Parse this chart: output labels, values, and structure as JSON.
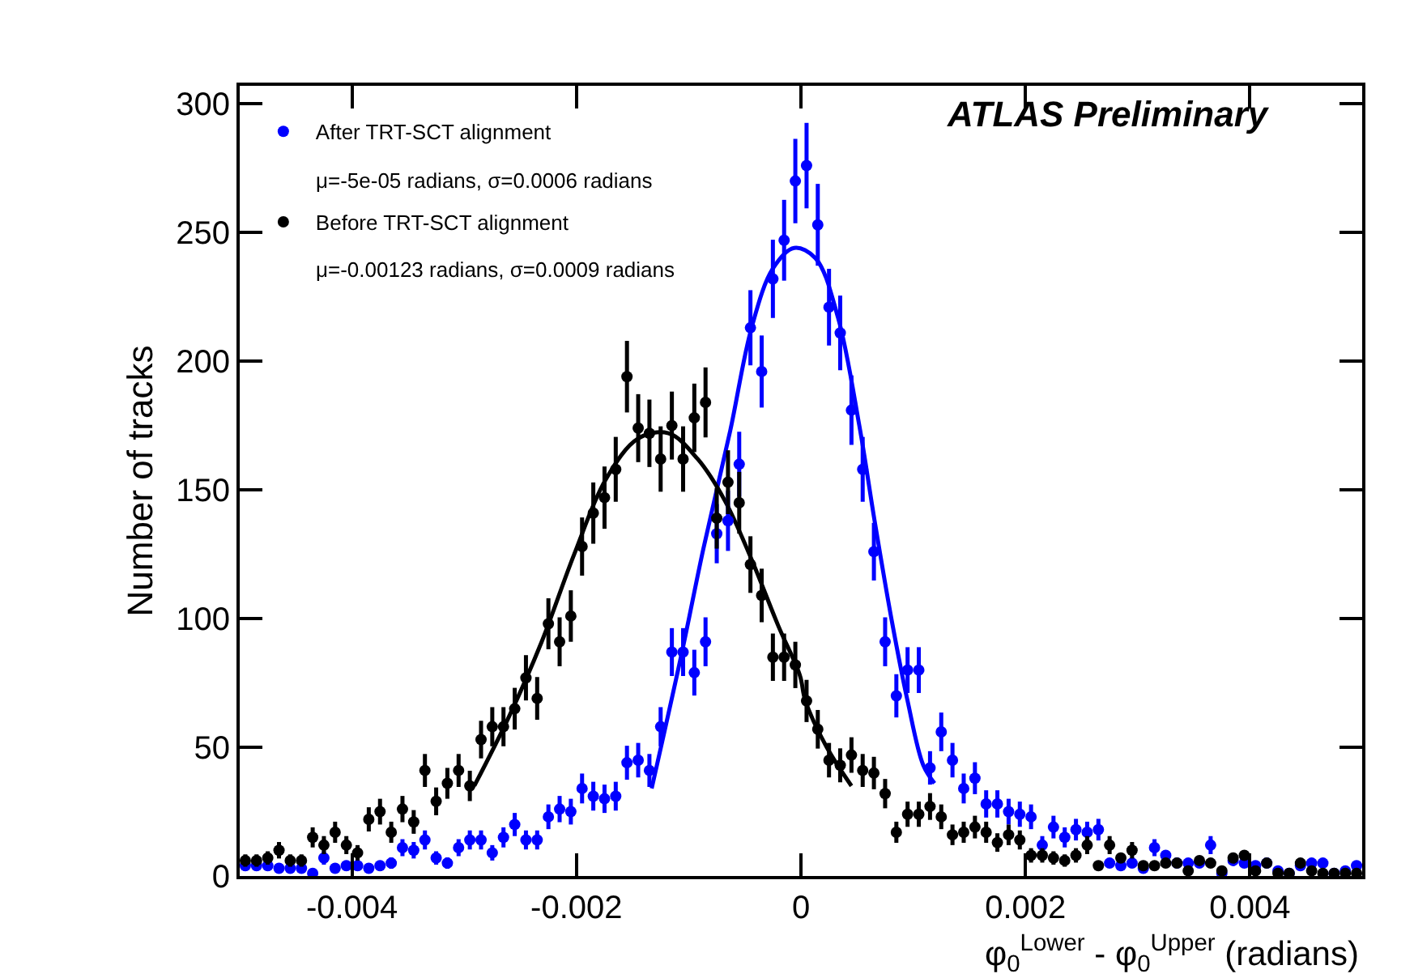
{
  "chart_data": {
    "type": "scatter",
    "xlabel": "φ$_{0}$$^{Lower}$ - φ$_{0}$$^{Upper}$ (radians)",
    "ylabel": "Number of tracks",
    "annotations": [
      "ATLAS Preliminary",
      "μ=-5e-05 radians, σ=0.0006 radians",
      "μ=-0.00123 radians, σ=0.0009 radians"
    ],
    "x": [
      -0.00495,
      -0.00485,
      -0.00475,
      -0.00465,
      -0.00455,
      -0.00445,
      -0.00435,
      -0.00425,
      -0.00415,
      -0.00405,
      -0.00395,
      -0.00385,
      -0.00375,
      -0.00365,
      -0.00355,
      -0.00345,
      -0.00335,
      -0.00325,
      -0.00315,
      -0.00305,
      -0.00295,
      -0.00285,
      -0.00275,
      -0.00265,
      -0.00255,
      -0.00245,
      -0.00235,
      -0.00225,
      -0.00215,
      -0.00205,
      -0.00195,
      -0.00185,
      -0.00175,
      -0.00165,
      -0.00155,
      -0.00145,
      -0.00135,
      -0.00125,
      -0.00115,
      -0.00105,
      -0.00095,
      -0.00085,
      -0.00075,
      -0.00065,
      -0.00055,
      -0.00045,
      -0.00035,
      -0.00025,
      -0.00015,
      -5e-05,
      5e-05,
      0.00015,
      0.00025,
      0.00035,
      0.00045,
      0.00055,
      0.00065,
      0.00075,
      0.00085,
      0.00095,
      0.00105,
      0.00115,
      0.00125,
      0.00135,
      0.00145,
      0.00155,
      0.00165,
      0.00175,
      0.00185,
      0.00195,
      0.00205,
      0.00215,
      0.00225,
      0.00235,
      0.00245,
      0.00255,
      0.00265,
      0.00275,
      0.00285,
      0.00295,
      0.00305,
      0.00315,
      0.00325,
      0.00335,
      0.00345,
      0.00355,
      0.00365,
      0.00375,
      0.00385,
      0.00395,
      0.00405,
      0.00415,
      0.00425,
      0.00435,
      0.00445,
      0.00455,
      0.00465,
      0.00475,
      0.00485,
      0.00495
    ],
    "series": [
      {
        "name": "After TRT-SCT alignment",
        "color": "#0000ff",
        "values": [
          4,
          4,
          4,
          3,
          3,
          3,
          1,
          7,
          3,
          4,
          4,
          3,
          4,
          5,
          11,
          10,
          14,
          7,
          5,
          11,
          14,
          14,
          9,
          15,
          20,
          14,
          14,
          23,
          26,
          25,
          34,
          31,
          30,
          31,
          44,
          45,
          41,
          58,
          87,
          87,
          79,
          91,
          133,
          138,
          160,
          213,
          196,
          232,
          247,
          270,
          276,
          253,
          221,
          211,
          181,
          158,
          126,
          91,
          70,
          80,
          80,
          42,
          56,
          45,
          34,
          38,
          28,
          28,
          25,
          24,
          23,
          12,
          19,
          15,
          18,
          17,
          18,
          5,
          4,
          5,
          3,
          11,
          8,
          5,
          5,
          5,
          12,
          1,
          6,
          5,
          4,
          5,
          2,
          1,
          4,
          5,
          5,
          1,
          2,
          4
        ],
        "errors": [
          2,
          2,
          2,
          1.7,
          1.7,
          1.7,
          1,
          2.6,
          1.7,
          2,
          2,
          1.7,
          2,
          2.2,
          3.3,
          3.2,
          3.7,
          2.6,
          2.2,
          3.3,
          3.7,
          3.7,
          3,
          3.9,
          4.5,
          3.7,
          3.7,
          4.8,
          5.1,
          5,
          5.8,
          5.6,
          5.5,
          5.6,
          6.6,
          6.7,
          6.4,
          7.6,
          9.3,
          9.3,
          8.9,
          9.5,
          11.5,
          11.7,
          12.6,
          14.6,
          14,
          15.2,
          15.7,
          16.4,
          16.6,
          15.9,
          14.9,
          14.5,
          13.5,
          12.6,
          11.2,
          9.5,
          8.4,
          8.9,
          8.9,
          6.5,
          7.5,
          6.7,
          5.8,
          6.2,
          5.3,
          5.3,
          5,
          4.9,
          4.8,
          3.5,
          4.4,
          3.9,
          4.2,
          4.1,
          4.2,
          null,
          null,
          null,
          null,
          3.3,
          null,
          null,
          null,
          null,
          3.5,
          null,
          null,
          null,
          null,
          null,
          null,
          null,
          null,
          null,
          null,
          null,
          null,
          null
        ]
      },
      {
        "name": "Before TRT-SCT alignment",
        "color": "#000000",
        "values": [
          6,
          6,
          7,
          10,
          6,
          6,
          15,
          12,
          17,
          12,
          9,
          22,
          25,
          17,
          26,
          21,
          41,
          29,
          36,
          41,
          35,
          53,
          58,
          58,
          65,
          77,
          69,
          98,
          91,
          101,
          128,
          141,
          147,
          158,
          194,
          174,
          172,
          162,
          175,
          162,
          178,
          184,
          139,
          153,
          145,
          121,
          109,
          85,
          85,
          82,
          68,
          57,
          45,
          43,
          47,
          41,
          40,
          32,
          17,
          24,
          24,
          27,
          23,
          16,
          17,
          19,
          17,
          13,
          16,
          14,
          8,
          8,
          7,
          6,
          8,
          12,
          4,
          12,
          7,
          10,
          4,
          4,
          5,
          5,
          2,
          6,
          5,
          2,
          7,
          8,
          2,
          5,
          1,
          1,
          5,
          2,
          1,
          1,
          1,
          1
        ],
        "errors": [
          2.4,
          2.4,
          2.6,
          3.2,
          2.4,
          2.4,
          3.9,
          3.5,
          4.1,
          3.5,
          3,
          4.7,
          5,
          4.1,
          5.1,
          4.6,
          6.4,
          5.4,
          6,
          6.4,
          5.9,
          7.3,
          7.6,
          7.6,
          8.1,
          8.8,
          8.3,
          9.9,
          9.5,
          10,
          11.3,
          11.9,
          12.1,
          12.6,
          13.9,
          13.2,
          13.1,
          12.7,
          13.2,
          12.7,
          13.3,
          13.6,
          11.8,
          12.4,
          12,
          11,
          10.4,
          9.2,
          9.2,
          9,
          8.2,
          7.5,
          6.7,
          6.6,
          6.9,
          6.4,
          6.3,
          5.7,
          4.1,
          4.9,
          4.9,
          5.2,
          4.8,
          4,
          4.1,
          4.4,
          4.1,
          3.6,
          4,
          3.7,
          2.8,
          2.8,
          2.6,
          2.4,
          2.8,
          3.5,
          null,
          3.5,
          null,
          3.2,
          null,
          null,
          null,
          null,
          null,
          null,
          null,
          null,
          null,
          null,
          null,
          null,
          null,
          null,
          null,
          null,
          null,
          null,
          null,
          null
        ]
      },
      {
        "type": "line",
        "marker": "none",
        "color": "#0000ff",
        "x": [
          -0.00133,
          -0.00106,
          -0.00087,
          -0.00063,
          -0.00044,
          -0.00025,
          -6e-05,
          0.00013,
          0.00033,
          0.00052,
          0.00066,
          0.00081,
          0.00095,
          0.00109,
          0.00119
        ],
        "values": [
          34,
          87,
          127,
          173,
          213,
          236,
          244,
          240,
          217,
          175,
          137,
          99,
          68,
          43,
          36
        ]
      },
      {
        "type": "line",
        "marker": "none",
        "color": "#000000",
        "x": [
          -0.00291,
          -0.0026,
          -0.00231,
          -0.00202,
          -0.00174,
          -0.00145,
          -0.00118,
          -0.00092,
          -0.00068,
          -0.00044,
          -0.0002,
          -1e-05,
          4e-05,
          0.00023,
          0.00045
        ],
        "values": [
          35,
          62,
          91,
          125,
          154,
          170,
          172,
          162,
          146,
          123,
          97,
          78,
          68,
          50,
          35
        ]
      }
    ],
    "xlim": [
      -0.005,
      0.005
    ],
    "xticks": [
      -0.004,
      -0.002,
      0,
      0.002,
      0.004
    ],
    "ylim": [
      0,
      307
    ],
    "yticks": [
      0,
      50,
      100,
      150,
      200,
      250,
      300
    ],
    "grid": false,
    "legend": "top left",
    "marker": "circle",
    "line_style": "solid"
  }
}
